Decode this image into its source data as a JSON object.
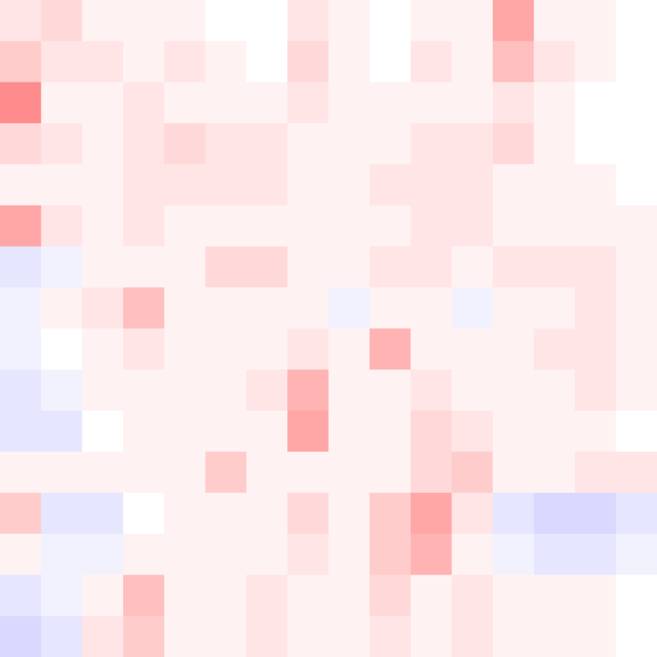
{
  "chart_data": {
    "type": "heatmap",
    "zlim": [
      -1,
      1
    ],
    "colors": [
      "#0000ff",
      "#ffffff",
      "#ff0000"
    ],
    "values": [
      [
        0.1,
        0.15,
        0.05,
        0.05,
        0.05,
        0,
        0,
        0.1,
        0.05,
        0,
        0.05,
        0.05,
        0.35,
        0.05,
        0.05,
        0
      ],
      [
        0.2,
        0.1,
        0.1,
        0.05,
        0.1,
        0.05,
        0,
        0.15,
        0.05,
        0,
        0.1,
        0.05,
        0.25,
        0.1,
        0.05,
        0
      ],
      [
        0.45,
        0.05,
        0.05,
        0.1,
        0.05,
        0.05,
        0.05,
        0.1,
        0.05,
        0.05,
        0.05,
        0.05,
        0.1,
        0.05,
        0,
        0
      ],
      [
        0.15,
        0.1,
        0.05,
        0.1,
        0.15,
        0.1,
        0.1,
        0.05,
        0.05,
        0.05,
        0.1,
        0.1,
        0.15,
        0.05,
        0,
        0
      ],
      [
        0.05,
        0.05,
        0.05,
        0.1,
        0.1,
        0.1,
        0.1,
        0.05,
        0.05,
        0.1,
        0.1,
        0.1,
        0.05,
        0.05,
        0.05,
        0
      ],
      [
        0.35,
        0.1,
        0.05,
        0.1,
        0.05,
        0.05,
        0.05,
        0.05,
        0.05,
        0.05,
        0.1,
        0.1,
        0.05,
        0.05,
        0.05,
        0.05
      ],
      [
        -0.1,
        -0.05,
        0.05,
        0.05,
        0.05,
        0.15,
        0.15,
        0.05,
        0.05,
        0.1,
        0.1,
        0.05,
        0.1,
        0.1,
        0.1,
        0.05
      ],
      [
        -0.05,
        0.05,
        0.1,
        0.25,
        0.05,
        0.05,
        0.05,
        0.05,
        -0.05,
        0.05,
        0.05,
        -0.05,
        0.05,
        0.05,
        0.1,
        0.05
      ],
      [
        -0.05,
        0,
        0.05,
        0.1,
        0.05,
        0.05,
        0.05,
        0.1,
        0.05,
        0.3,
        0.05,
        0.05,
        0.05,
        0.1,
        0.1,
        0.05
      ],
      [
        -0.1,
        -0.05,
        0.05,
        0.05,
        0.05,
        0.05,
        0.1,
        0.3,
        0.05,
        0.05,
        0.1,
        0.05,
        0.05,
        0.05,
        0.1,
        0.05
      ],
      [
        -0.1,
        -0.1,
        0,
        0.05,
        0.05,
        0.05,
        0.05,
        0.35,
        0.05,
        0.05,
        0.15,
        0.1,
        0.05,
        0.05,
        0.05,
        0
      ],
      [
        0.05,
        0.05,
        0.05,
        0.05,
        0.05,
        0.2,
        0.05,
        0.05,
        0.05,
        0.05,
        0.15,
        0.2,
        0.05,
        0.05,
        0.1,
        0.1
      ],
      [
        0.2,
        -0.1,
        -0.1,
        0,
        0.05,
        0.05,
        0.05,
        0.15,
        0.05,
        0.2,
        0.35,
        0.1,
        -0.1,
        -0.15,
        -0.15,
        -0.1
      ],
      [
        0.05,
        -0.05,
        -0.05,
        0.05,
        0.05,
        0.05,
        0.05,
        0.1,
        0.05,
        0.2,
        0.3,
        0.05,
        -0.05,
        -0.1,
        -0.1,
        -0.05
      ],
      [
        -0.1,
        -0.05,
        0.05,
        0.25,
        0.05,
        0.05,
        0.1,
        0.05,
        0.05,
        0.15,
        0.05,
        0.1,
        0.05,
        0.05,
        0.05,
        0
      ],
      [
        -0.15,
        -0.1,
        0.1,
        0.2,
        0.05,
        0.05,
        0.1,
        0.05,
        0.05,
        0.1,
        0.05,
        0.1,
        0.05,
        0.05,
        0.05,
        0
      ]
    ]
  }
}
